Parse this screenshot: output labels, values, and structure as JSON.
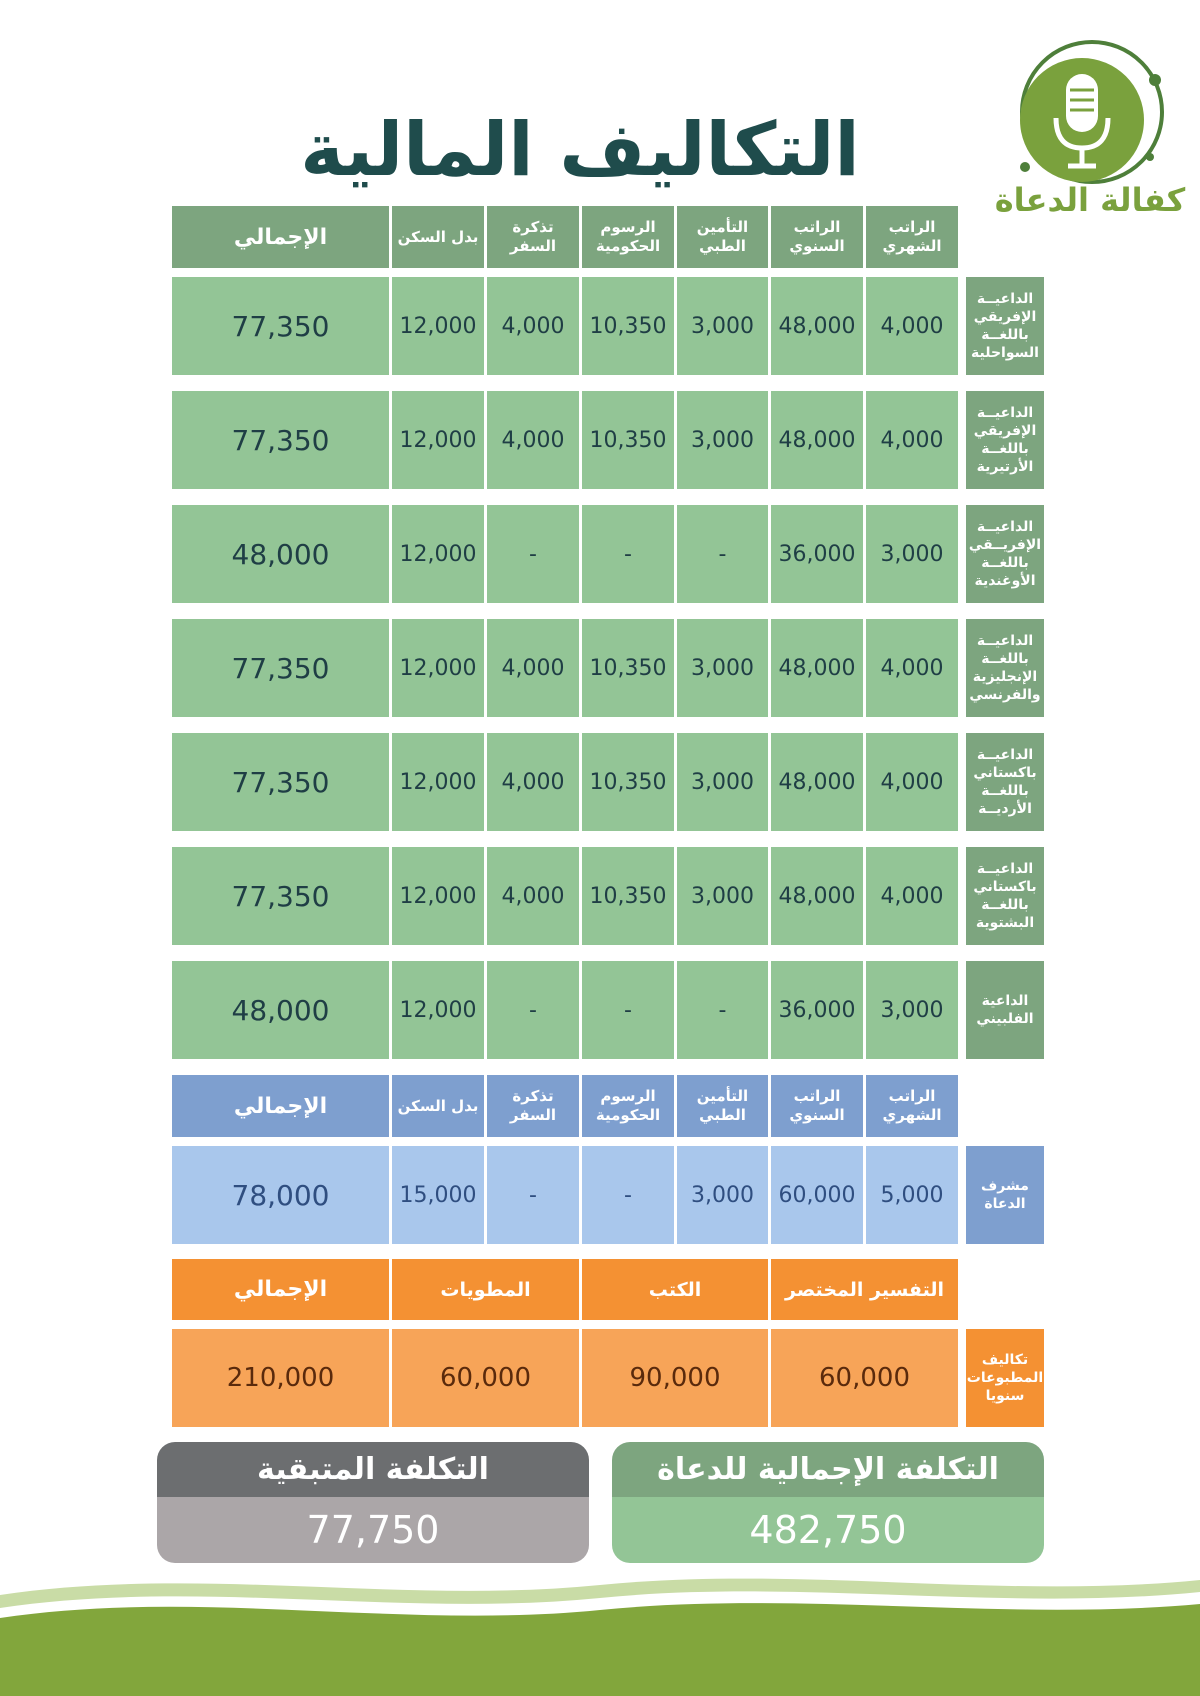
{
  "title": "التكاليف المالية",
  "logo": {
    "text": "كفالة الدعاة",
    "icon": "microphone-icon"
  },
  "dash": "-",
  "duat_table": {
    "headers": [
      "الراتب الشهري",
      "الراتب السنوي",
      "التأمين الطبي",
      "الرسوم الحكومية",
      "تذكرة السفر",
      "بدل السكن",
      "الإجمالي"
    ],
    "rows": [
      {
        "label": "الداعيــة الإفريقي باللغــة السواحلية",
        "values": [
          "4,000",
          "48,000",
          "3,000",
          "10,350",
          "4,000",
          "12,000",
          "77,350"
        ]
      },
      {
        "label": "الداعيــة الإفريقي باللغــة الأرتيرية",
        "values": [
          "4,000",
          "48,000",
          "3,000",
          "10,350",
          "4,000",
          "12,000",
          "77,350"
        ]
      },
      {
        "label": "الداعيــة الإفريــقي باللغــة الأوغندية",
        "values": [
          "3,000",
          "36,000",
          "-",
          "-",
          "-",
          "12,000",
          "48,000"
        ]
      },
      {
        "label": "الداعيــة باللغــة الإنجليزية والفرنسي",
        "values": [
          "4,000",
          "48,000",
          "3,000",
          "10,350",
          "4,000",
          "12,000",
          "77,350"
        ]
      },
      {
        "label": "الداعيــة باكستاني باللغــة الأرديــة",
        "values": [
          "4,000",
          "48,000",
          "3,000",
          "10,350",
          "4,000",
          "12,000",
          "77,350"
        ]
      },
      {
        "label": "الداعيــة باكستاني باللغــة البشتوية",
        "values": [
          "4,000",
          "48,000",
          "3,000",
          "10,350",
          "4,000",
          "12,000",
          "77,350"
        ]
      },
      {
        "label": "الداعية الفلبيني",
        "values": [
          "3,000",
          "36,000",
          "-",
          "-",
          "-",
          "12,000",
          "48,000"
        ]
      }
    ]
  },
  "supervisor_table": {
    "headers": [
      "الراتب الشهري",
      "الراتب السنوي",
      "التأمين الطبي",
      "الرسوم الحكومية",
      "تذكرة السفر",
      "بدل السكن",
      "الإجمالي"
    ],
    "row": {
      "label": "مشرف الدعاة",
      "values": [
        "5,000",
        "60,000",
        "3,000",
        "-",
        "-",
        "15,000",
        "78,000"
      ]
    }
  },
  "prints_table": {
    "headers": [
      "التفسير المختصر",
      "الكتب",
      "المطويات",
      "الإجمالي"
    ],
    "row": {
      "label": "تكاليف المطبوعات سنويا",
      "values": [
        "60,000",
        "90,000",
        "60,000",
        "210,000"
      ]
    }
  },
  "summary": {
    "total": {
      "label": "التكلفة الإجمالية للدعاة",
      "value": "482,750"
    },
    "remaining": {
      "label": "التكلفة المتبقية",
      "value": "77,750"
    }
  },
  "colors": {
    "green_header": "#7da57f",
    "green_cell": "#93c596",
    "blue_header": "#7e9fcf",
    "blue_cell": "#a9c7ec",
    "orange_header": "#f49133",
    "orange_cell": "#f7a458",
    "title": "#1f4c4c",
    "brand": "#7aa13d"
  }
}
